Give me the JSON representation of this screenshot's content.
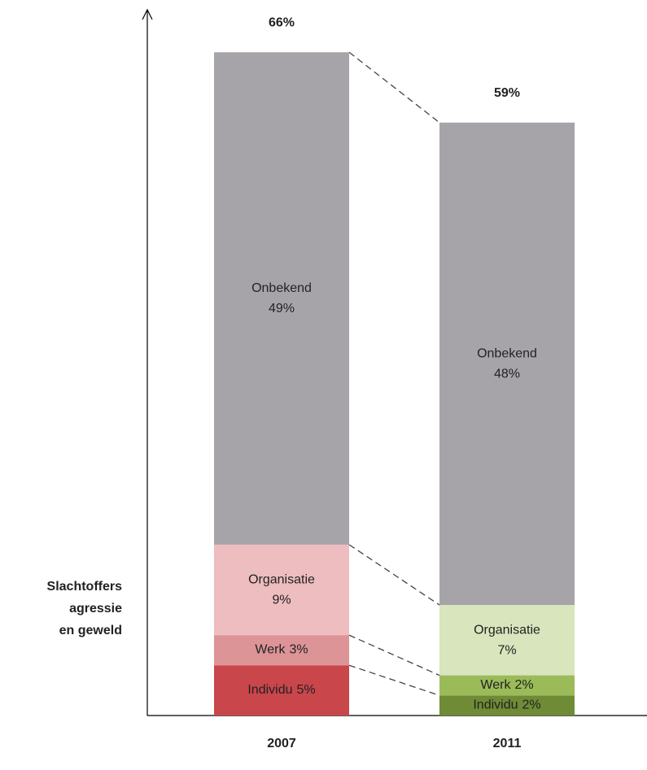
{
  "chart_data": {
    "type": "stacked_bar",
    "categories": [
      "2007",
      "2011"
    ],
    "series": [
      {
        "name": "Individu",
        "colors": [
          "#c9464a",
          "#6f8b36"
        ],
        "values": [
          5,
          2
        ],
        "value_labels": [
          "5%",
          "2%"
        ]
      },
      {
        "name": "Werk",
        "colors": [
          "#dd9497",
          "#9bbb59"
        ],
        "values": [
          3,
          2
        ],
        "value_labels": [
          "3%",
          "2%"
        ]
      },
      {
        "name": "Organisatie",
        "colors": [
          "#eebdc0",
          "#d9e5bd"
        ],
        "values": [
          9,
          7
        ],
        "value_labels": [
          "9%",
          "7%"
        ]
      },
      {
        "name": "Onbekend",
        "colors": [
          "#a7a4a9",
          "#a7a4a9"
        ],
        "values": [
          49,
          48
        ],
        "value_labels": [
          "49%",
          "48%"
        ]
      }
    ],
    "totals": [
      66,
      59
    ],
    "total_labels": [
      "66%",
      "59%"
    ],
    "ylabel": [
      "Slachtoffers",
      "agressie",
      "en geweld"
    ]
  }
}
